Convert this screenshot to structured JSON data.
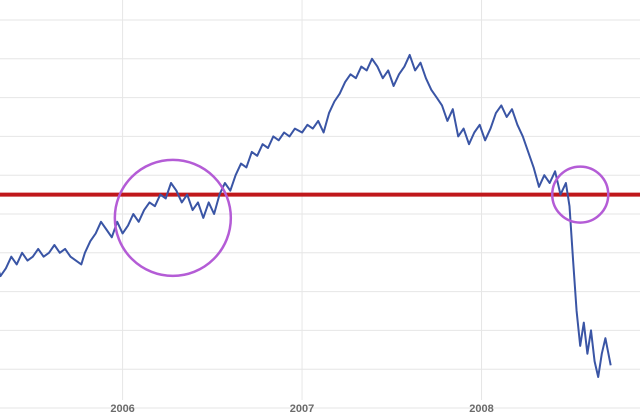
{
  "chart_data": {
    "type": "line",
    "title": "",
    "xlabel": "",
    "ylabel": "",
    "x_ticks": [
      "2006",
      "2007",
      "2008"
    ],
    "xlim": [
      2005.2,
      2009.0
    ],
    "ylim": [
      0,
      100
    ],
    "grid": true,
    "legend": "none",
    "series": [
      {
        "color": "#3a55a5",
        "points": [
          [
            2005.2,
            40
          ],
          [
            2005.23,
            39
          ],
          [
            2005.26,
            35
          ],
          [
            2005.29,
            38
          ],
          [
            2005.32,
            34
          ],
          [
            2005.35,
            36
          ],
          [
            2005.38,
            39
          ],
          [
            2005.41,
            37
          ],
          [
            2005.44,
            40
          ],
          [
            2005.47,
            38
          ],
          [
            2005.5,
            39
          ],
          [
            2005.53,
            41
          ],
          [
            2005.56,
            39
          ],
          [
            2005.59,
            40
          ],
          [
            2005.62,
            42
          ],
          [
            2005.65,
            40
          ],
          [
            2005.68,
            41
          ],
          [
            2005.71,
            39
          ],
          [
            2005.74,
            38
          ],
          [
            2005.77,
            37
          ],
          [
            2005.79,
            40
          ],
          [
            2005.82,
            43
          ],
          [
            2005.85,
            45
          ],
          [
            2005.88,
            48
          ],
          [
            2005.91,
            46
          ],
          [
            2005.94,
            44
          ],
          [
            2005.97,
            48
          ],
          [
            2006.0,
            45
          ],
          [
            2006.03,
            47
          ],
          [
            2006.06,
            50
          ],
          [
            2006.09,
            48
          ],
          [
            2006.12,
            51
          ],
          [
            2006.15,
            53
          ],
          [
            2006.18,
            52
          ],
          [
            2006.21,
            55
          ],
          [
            2006.24,
            54
          ],
          [
            2006.27,
            58
          ],
          [
            2006.3,
            56
          ],
          [
            2006.33,
            53
          ],
          [
            2006.36,
            55
          ],
          [
            2006.39,
            51
          ],
          [
            2006.42,
            53
          ],
          [
            2006.45,
            49
          ],
          [
            2006.48,
            53
          ],
          [
            2006.51,
            50
          ],
          [
            2006.54,
            55
          ],
          [
            2006.57,
            58
          ],
          [
            2006.6,
            56
          ],
          [
            2006.63,
            60
          ],
          [
            2006.66,
            63
          ],
          [
            2006.69,
            62
          ],
          [
            2006.72,
            66
          ],
          [
            2006.75,
            65
          ],
          [
            2006.78,
            68
          ],
          [
            2006.81,
            67
          ],
          [
            2006.84,
            70
          ],
          [
            2006.87,
            69
          ],
          [
            2006.9,
            71
          ],
          [
            2006.93,
            70
          ],
          [
            2006.96,
            72
          ],
          [
            2007.0,
            71
          ],
          [
            2007.03,
            73
          ],
          [
            2007.06,
            72
          ],
          [
            2007.09,
            74
          ],
          [
            2007.12,
            71
          ],
          [
            2007.15,
            76
          ],
          [
            2007.18,
            79
          ],
          [
            2007.21,
            81
          ],
          [
            2007.24,
            84
          ],
          [
            2007.27,
            86
          ],
          [
            2007.3,
            85
          ],
          [
            2007.33,
            88
          ],
          [
            2007.36,
            87
          ],
          [
            2007.39,
            90
          ],
          [
            2007.42,
            88
          ],
          [
            2007.45,
            85
          ],
          [
            2007.48,
            87
          ],
          [
            2007.51,
            83
          ],
          [
            2007.54,
            86
          ],
          [
            2007.57,
            88
          ],
          [
            2007.6,
            91
          ],
          [
            2007.63,
            87
          ],
          [
            2007.66,
            89
          ],
          [
            2007.69,
            85
          ],
          [
            2007.72,
            82
          ],
          [
            2007.75,
            80
          ],
          [
            2007.78,
            78
          ],
          [
            2007.81,
            74
          ],
          [
            2007.84,
            77
          ],
          [
            2007.87,
            70
          ],
          [
            2007.9,
            72
          ],
          [
            2007.93,
            68
          ],
          [
            2007.96,
            71
          ],
          [
            2007.99,
            73
          ],
          [
            2008.02,
            69
          ],
          [
            2008.05,
            72
          ],
          [
            2008.08,
            76
          ],
          [
            2008.11,
            78
          ],
          [
            2008.14,
            75
          ],
          [
            2008.17,
            77
          ],
          [
            2008.2,
            73
          ],
          [
            2008.23,
            70
          ],
          [
            2008.26,
            66
          ],
          [
            2008.29,
            62
          ],
          [
            2008.32,
            57
          ],
          [
            2008.35,
            60
          ],
          [
            2008.38,
            58
          ],
          [
            2008.41,
            61
          ],
          [
            2008.44,
            55
          ],
          [
            2008.47,
            58
          ],
          [
            2008.49,
            52
          ],
          [
            2008.51,
            38
          ],
          [
            2008.53,
            25
          ],
          [
            2008.55,
            16
          ],
          [
            2008.57,
            22
          ],
          [
            2008.59,
            14
          ],
          [
            2008.61,
            20
          ],
          [
            2008.63,
            12
          ],
          [
            2008.65,
            8
          ],
          [
            2008.67,
            14
          ],
          [
            2008.69,
            18
          ],
          [
            2008.72,
            11
          ]
        ]
      }
    ],
    "reference_lines": [
      {
        "orientation": "horizontal",
        "y": 55,
        "color": "#c0181b"
      }
    ],
    "annotations": [
      {
        "shape": "circle",
        "x": 2006.28,
        "y": 49,
        "color": "#b45cd6"
      },
      {
        "shape": "circle",
        "x": 2008.55,
        "y": 55,
        "color": "#b45cd6"
      }
    ],
    "colors": {
      "line": "#3a55a5",
      "reference": "#c0181b",
      "highlight": "#b45cd6",
      "grid": "#e6e6e6",
      "tick_text": "#6b6b6b"
    }
  }
}
